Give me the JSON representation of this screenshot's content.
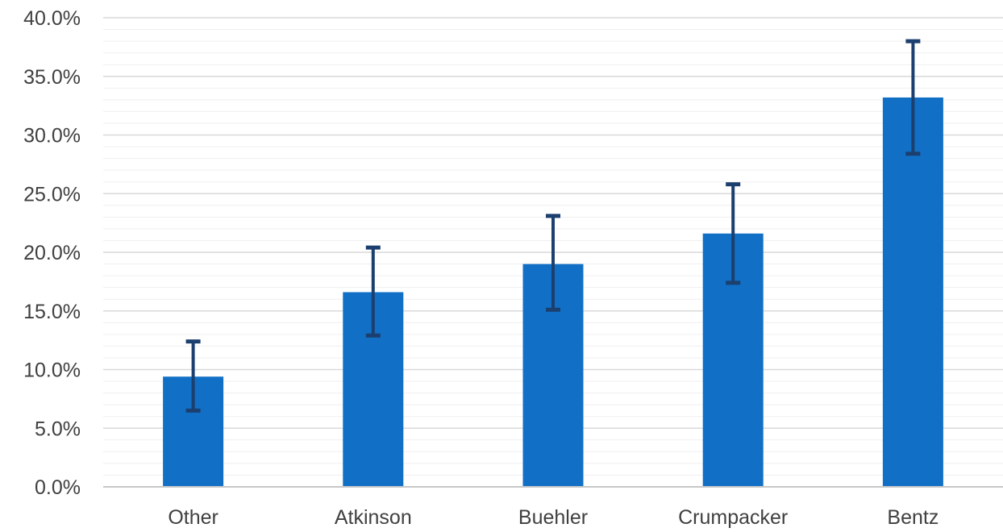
{
  "chart_data": {
    "type": "bar",
    "title": "",
    "xlabel": "",
    "ylabel": "",
    "categories": [
      "Other",
      "Atkinson",
      "Buehler",
      "Crumpacker",
      "Bentz"
    ],
    "values": [
      9.4,
      16.6,
      19.0,
      21.6,
      33.2
    ],
    "error_low": [
      6.5,
      12.9,
      15.1,
      17.4,
      28.4
    ],
    "error_high": [
      12.4,
      20.4,
      23.1,
      25.8,
      38.0
    ],
    "ylim": [
      0,
      40
    ],
    "y_ticks": [
      0,
      5,
      10,
      15,
      20,
      25,
      30,
      35,
      40
    ],
    "y_tick_labels": [
      "0.0%",
      "5.0%",
      "10.0%",
      "15.0%",
      "20.0%",
      "25.0%",
      "30.0%",
      "35.0%",
      "40.0%"
    ],
    "grid": true,
    "minor_grid": true,
    "legend": "none",
    "colors": {
      "bar": "#1170c6",
      "error_bar": "#1b3f6e"
    }
  }
}
